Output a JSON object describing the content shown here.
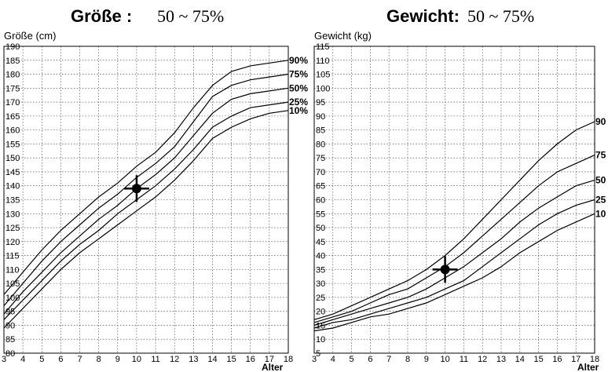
{
  "chart_data": [
    {
      "type": "line",
      "title": "Größe :",
      "title_range": "50 ~ 75%",
      "ylabel": "Größe (cm)",
      "xlabel": "Alter",
      "xlim": [
        3,
        18
      ],
      "ylim": [
        80,
        190
      ],
      "xticks": [
        3,
        4,
        5,
        6,
        7,
        8,
        9,
        10,
        11,
        12,
        13,
        14,
        15,
        16,
        17,
        18
      ],
      "yticks": [
        80,
        85,
        90,
        95,
        100,
        105,
        110,
        115,
        120,
        125,
        130,
        135,
        140,
        145,
        150,
        155,
        160,
        165,
        170,
        175,
        180,
        185,
        190
      ],
      "grid": true,
      "x": [
        3,
        4,
        5,
        6,
        7,
        8,
        9,
        10,
        11,
        12,
        13,
        14,
        15,
        16,
        17,
        18
      ],
      "series": [
        {
          "name": "90%",
          "values": [
            101,
            109,
            117,
            124,
            130,
            136,
            141,
            147,
            152,
            159,
            168,
            176,
            181,
            183,
            184,
            185
          ]
        },
        {
          "name": "75%",
          "values": [
            97,
            105,
            113,
            120,
            126,
            132,
            137,
            143,
            148,
            154,
            163,
            172,
            176,
            178,
            179,
            180
          ]
        },
        {
          "name": "50%",
          "values": [
            94,
            102,
            109,
            116,
            122,
            128,
            133,
            139,
            144,
            150,
            158,
            166,
            171,
            173,
            174,
            175
          ]
        },
        {
          "name": "25%",
          "values": [
            92,
            99,
            106,
            113,
            119,
            124,
            130,
            135,
            140,
            146,
            153,
            161,
            165,
            168,
            169,
            170
          ]
        },
        {
          "name": "10%",
          "values": [
            89,
            96,
            103,
            110,
            116,
            121,
            126,
            131,
            136,
            142,
            149,
            157,
            161,
            164,
            166,
            167
          ]
        }
      ],
      "marker": {
        "x": 10,
        "y": 139
      }
    },
    {
      "type": "line",
      "title": "Gewicht:",
      "title_range": "50 ~ 75%",
      "ylabel": "Gewicht (kg)",
      "xlabel": "Alter",
      "xlim": [
        3,
        18
      ],
      "ylim": [
        5,
        115
      ],
      "xticks": [
        3,
        4,
        5,
        6,
        7,
        8,
        9,
        10,
        11,
        12,
        13,
        14,
        15,
        16,
        17,
        18
      ],
      "yticks": [
        5,
        10,
        15,
        20,
        25,
        30,
        35,
        40,
        45,
        50,
        55,
        60,
        65,
        70,
        75,
        80,
        85,
        90,
        95,
        100,
        105,
        110,
        115
      ],
      "grid": true,
      "x": [
        3,
        4,
        5,
        6,
        7,
        8,
        9,
        10,
        11,
        12,
        13,
        14,
        15,
        16,
        17,
        18
      ],
      "series": [
        {
          "name": "90%",
          "label": "90",
          "values": [
            17,
            19,
            22,
            25,
            28,
            31,
            35,
            40,
            46,
            53,
            60,
            67,
            74,
            80,
            85,
            88
          ]
        },
        {
          "name": "75%",
          "label": "75",
          "values": [
            16,
            18,
            20,
            23,
            26,
            28,
            32,
            36,
            41,
            47,
            53,
            59,
            65,
            70,
            73,
            76
          ]
        },
        {
          "name": "50%",
          "label": "50",
          "values": [
            15,
            17,
            19,
            21,
            23,
            25,
            28,
            32,
            36,
            41,
            46,
            52,
            57,
            61,
            65,
            67
          ]
        },
        {
          "name": "25%",
          "label": "25",
          "values": [
            14,
            16,
            17,
            19,
            21,
            23,
            25,
            28,
            31,
            36,
            41,
            46,
            51,
            55,
            58,
            60
          ]
        },
        {
          "name": "10%",
          "label": "10",
          "values": [
            13,
            14,
            16,
            18,
            19,
            21,
            23,
            26,
            29,
            32,
            36,
            41,
            45,
            49,
            52,
            55
          ]
        }
      ],
      "marker": {
        "x": 10,
        "y": 35
      }
    }
  ]
}
